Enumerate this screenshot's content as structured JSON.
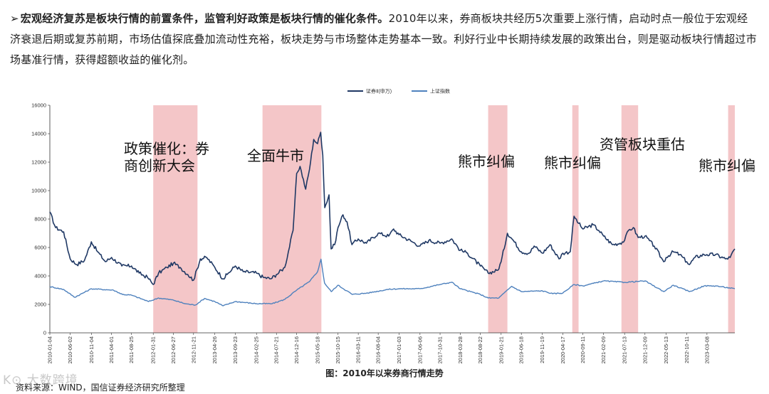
{
  "intro": {
    "bullet": "➢",
    "lead": "宏观经济复苏是板块行情的前置条件，监管利好政策是板块行情的催化条件。",
    "body": "2010年以来，券商板块共经历5次重要上涨行情，启动时点一般位于宏观经济衰退后期或复苏前期，市场估值探底叠加流动性充裕，板块走势与市场整体走势基本一致。利好行业中长期持续发展的政策出台，则是驱动板块行情超过市场基准行情，获得超额收益的催化剂。"
  },
  "caption": "图：2010年以来券商行情走势",
  "source": "资料来源：WIND，国信证券经济研究所整理",
  "watermark": "K⊙ 大数跨境",
  "colors": {
    "series1": "#1f3864",
    "series2": "#4e81bd",
    "band": "#f4c6c8"
  },
  "chart_data": {
    "type": "line",
    "x_start": "2010-01-04",
    "x_end": "2023-09-28",
    "ylim": [
      0,
      16000
    ],
    "yticks": [
      0,
      2000,
      4000,
      6000,
      8000,
      10000,
      12000,
      14000,
      16000
    ],
    "ytick_labels": [
      "0",
      "2000",
      "4000",
      "6000",
      "8000",
      "10000",
      "12000",
      "14000",
      "16000"
    ],
    "xtick_labels": [
      "2010-01-04",
      "2010-06-02",
      "2010-11-04",
      "2011-04-01",
      "2011-08-25",
      "2012-01-31",
      "2012-06-27",
      "2012-11-21",
      "2013-04-26",
      "2013-09-23",
      "2014-02-25",
      "2014-07-21",
      "2014-12-16",
      "2015-05-18",
      "2015-10-15",
      "2016-03-11",
      "2016-08-04",
      "2017-01-03",
      "2017-06-06",
      "2017-10-31",
      "2018-03-28",
      "2018-08-22",
      "2019-01-21",
      "2019-06-18",
      "2019-11-19",
      "2020-04-17",
      "2020-09-11",
      "2021-02-09",
      "2021-07-13",
      "2021-12-09",
      "2022-05-13",
      "2022-10-11",
      "2023-03-08"
    ],
    "legend_position": "top-center",
    "grid": false,
    "series": [
      {
        "name": "证券Ⅱ(申万)",
        "points": [
          [
            "2010-01-04",
            8500
          ],
          [
            "2010-02-15",
            7400
          ],
          [
            "2010-04-15",
            7100
          ],
          [
            "2010-06-02",
            5200
          ],
          [
            "2010-07-20",
            4800
          ],
          [
            "2010-09-15",
            5100
          ],
          [
            "2010-11-04",
            6400
          ],
          [
            "2010-12-20",
            5700
          ],
          [
            "2011-02-15",
            5000
          ],
          [
            "2011-04-01",
            5300
          ],
          [
            "2011-06-15",
            4700
          ],
          [
            "2011-08-25",
            4700
          ],
          [
            "2011-10-20",
            4200
          ],
          [
            "2011-12-20",
            3900
          ],
          [
            "2012-01-31",
            3400
          ],
          [
            "2012-03-10",
            4200
          ],
          [
            "2012-05-10",
            4600
          ],
          [
            "2012-06-27",
            4900
          ],
          [
            "2012-08-15",
            4600
          ],
          [
            "2012-10-10",
            4100
          ],
          [
            "2012-11-21",
            3700
          ],
          [
            "2013-01-10",
            5200
          ],
          [
            "2013-02-25",
            5300
          ],
          [
            "2013-04-26",
            4600
          ],
          [
            "2013-06-25",
            3800
          ],
          [
            "2013-07-25",
            4100
          ],
          [
            "2013-09-23",
            4700
          ],
          [
            "2013-11-20",
            4300
          ],
          [
            "2014-02-25",
            4200
          ],
          [
            "2014-04-15",
            3900
          ],
          [
            "2014-06-10",
            3800
          ],
          [
            "2014-07-21",
            4100
          ],
          [
            "2014-09-20",
            4600
          ],
          [
            "2014-11-20",
            7200
          ],
          [
            "2014-12-16",
            11200
          ],
          [
            "2015-01-10",
            11700
          ],
          [
            "2015-02-20",
            10100
          ],
          [
            "2015-03-20",
            11500
          ],
          [
            "2015-04-20",
            13600
          ],
          [
            "2015-05-18",
            13300
          ],
          [
            "2015-06-10",
            14100
          ],
          [
            "2015-06-25",
            12500
          ],
          [
            "2015-07-10",
            8800
          ],
          [
            "2015-08-10",
            9700
          ],
          [
            "2015-08-25",
            5900
          ],
          [
            "2015-09-20",
            6200
          ],
          [
            "2015-10-15",
            7400
          ],
          [
            "2015-11-20",
            8300
          ],
          [
            "2015-12-20",
            7800
          ],
          [
            "2016-01-25",
            6200
          ],
          [
            "2016-03-11",
            6600
          ],
          [
            "2016-05-10",
            6300
          ],
          [
            "2016-08-04",
            7000
          ],
          [
            "2016-10-20",
            6800
          ],
          [
            "2016-11-25",
            7300
          ],
          [
            "2017-01-03",
            6900
          ],
          [
            "2017-04-10",
            6400
          ],
          [
            "2017-06-06",
            6100
          ],
          [
            "2017-08-10",
            6500
          ],
          [
            "2017-10-31",
            6300
          ],
          [
            "2018-01-25",
            6600
          ],
          [
            "2018-03-28",
            5800
          ],
          [
            "2018-05-20",
            5600
          ],
          [
            "2018-08-22",
            4700
          ],
          [
            "2018-10-18",
            4200
          ],
          [
            "2018-12-28",
            4400
          ],
          [
            "2019-01-21",
            5000
          ],
          [
            "2019-03-08",
            7000
          ],
          [
            "2019-04-20",
            6500
          ],
          [
            "2019-06-18",
            5700
          ],
          [
            "2019-08-15",
            5600
          ],
          [
            "2019-09-20",
            6100
          ],
          [
            "2019-11-19",
            5600
          ],
          [
            "2020-01-14",
            6200
          ],
          [
            "2020-03-20",
            5200
          ],
          [
            "2020-04-17",
            5600
          ],
          [
            "2020-06-10",
            5700
          ],
          [
            "2020-07-08",
            8200
          ],
          [
            "2020-08-10",
            7700
          ],
          [
            "2020-09-11",
            7300
          ],
          [
            "2020-11-25",
            7600
          ],
          [
            "2021-01-05",
            7200
          ],
          [
            "2021-02-09",
            6800
          ],
          [
            "2021-04-15",
            6200
          ],
          [
            "2021-06-10",
            6300
          ],
          [
            "2021-07-13",
            6500
          ],
          [
            "2021-08-10",
            7200
          ],
          [
            "2021-09-15",
            7400
          ],
          [
            "2021-10-20",
            6700
          ],
          [
            "2021-12-09",
            6800
          ],
          [
            "2022-02-15",
            6100
          ],
          [
            "2022-04-25",
            5000
          ],
          [
            "2022-05-13",
            5300
          ],
          [
            "2022-07-05",
            5700
          ],
          [
            "2022-08-20",
            5500
          ],
          [
            "2022-10-11",
            5000
          ],
          [
            "2022-10-31",
            4800
          ],
          [
            "2022-12-10",
            5300
          ],
          [
            "2023-02-15",
            5500
          ],
          [
            "2023-03-08",
            5500
          ],
          [
            "2023-05-10",
            5500
          ],
          [
            "2023-07-20",
            5200
          ],
          [
            "2023-08-25",
            5300
          ],
          [
            "2023-09-28",
            5900
          ]
        ]
      },
      {
        "name": "上证指数",
        "points": [
          [
            "2010-01-04",
            3250
          ],
          [
            "2010-04-15",
            3050
          ],
          [
            "2010-07-05",
            2500
          ],
          [
            "2010-11-04",
            3100
          ],
          [
            "2011-04-15",
            3000
          ],
          [
            "2011-06-20",
            2700
          ],
          [
            "2011-08-25",
            2650
          ],
          [
            "2011-12-28",
            2200
          ],
          [
            "2012-03-10",
            2450
          ],
          [
            "2012-06-27",
            2300
          ],
          [
            "2012-09-20",
            2050
          ],
          [
            "2012-12-03",
            1950
          ],
          [
            "2013-02-10",
            2420
          ],
          [
            "2013-04-26",
            2200
          ],
          [
            "2013-06-25",
            1900
          ],
          [
            "2013-09-23",
            2200
          ],
          [
            "2014-02-25",
            2050
          ],
          [
            "2014-06-20",
            2050
          ],
          [
            "2014-09-20",
            2350
          ],
          [
            "2014-12-16",
            3000
          ],
          [
            "2015-03-20",
            3600
          ],
          [
            "2015-05-18",
            4300
          ],
          [
            "2015-06-12",
            5180
          ],
          [
            "2015-07-08",
            3500
          ],
          [
            "2015-08-26",
            2900
          ],
          [
            "2015-10-15",
            3350
          ],
          [
            "2016-01-28",
            2700
          ],
          [
            "2016-05-20",
            2800
          ],
          [
            "2016-10-10",
            3050
          ],
          [
            "2017-01-03",
            3100
          ],
          [
            "2017-06-06",
            3100
          ],
          [
            "2017-10-31",
            3400
          ],
          [
            "2018-01-26",
            3560
          ],
          [
            "2018-03-28",
            3100
          ],
          [
            "2018-08-22",
            2700
          ],
          [
            "2018-10-18",
            2450
          ],
          [
            "2019-01-04",
            2450
          ],
          [
            "2019-04-08",
            3270
          ],
          [
            "2019-06-18",
            2900
          ],
          [
            "2019-11-19",
            2950
          ],
          [
            "2020-02-03",
            2750
          ],
          [
            "2020-04-17",
            2800
          ],
          [
            "2020-07-08",
            3400
          ],
          [
            "2020-09-11",
            3300
          ],
          [
            "2021-02-09",
            3650
          ],
          [
            "2021-07-13",
            3550
          ],
          [
            "2021-12-09",
            3650
          ],
          [
            "2022-04-26",
            2900
          ],
          [
            "2022-07-05",
            3350
          ],
          [
            "2022-10-31",
            2900
          ],
          [
            "2023-02-15",
            3300
          ],
          [
            "2023-05-10",
            3300
          ],
          [
            "2023-09-28",
            3100
          ]
        ]
      }
    ],
    "bands": [
      {
        "start": "2012-01-31",
        "end": "2012-12-20",
        "label_lines": [
          "政策催化：券",
          "商创新大会"
        ]
      },
      {
        "start": "2014-04-10",
        "end": "2015-06-15",
        "label_lines": [
          "全面牛市"
        ]
      },
      {
        "start": "2018-10-18",
        "end": "2019-03-08",
        "label_lines": [
          "熊市纠偏"
        ]
      },
      {
        "start": "2020-06-25",
        "end": "2020-08-10",
        "label_lines": [
          "熊市纠偏"
        ]
      },
      {
        "start": "2021-06-20",
        "end": "2021-10-20",
        "label_lines": [
          "资管板块重估"
        ]
      },
      {
        "start": "2023-08-10",
        "end": "2023-09-28",
        "label_lines": [
          "熊市纠偏"
        ]
      }
    ]
  }
}
